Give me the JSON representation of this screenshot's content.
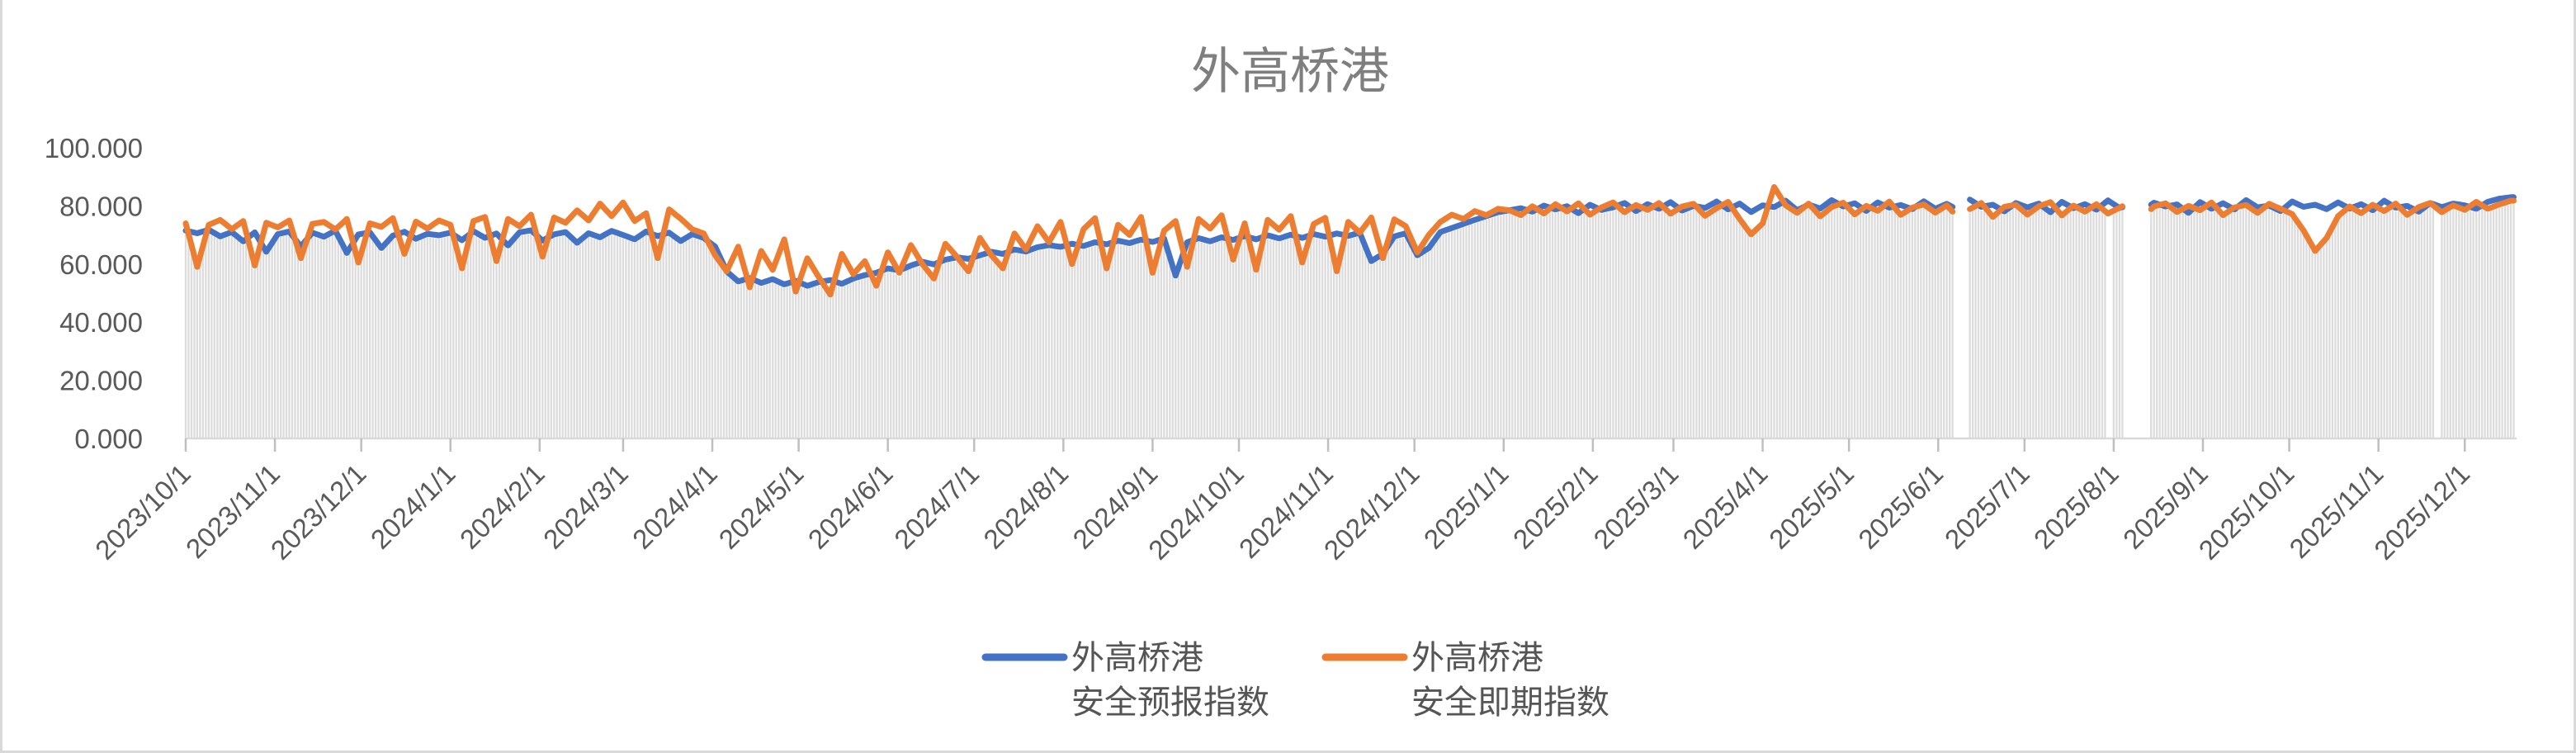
{
  "chart_data": {
    "type": "line",
    "title": "外高桥港",
    "grid": false,
    "legend_position": "bottom",
    "ylim": [
      0,
      100
    ],
    "y_tick_values": [
      0,
      20,
      40,
      60,
      80,
      100
    ],
    "y_tick_labels": [
      "0.000",
      "20.000",
      "40.000",
      "60.000",
      "80.000",
      "100.000"
    ],
    "x_tick_labels": [
      "2023/10/1",
      "2023/11/1",
      "2023/12/1",
      "2024/1/1",
      "2024/2/1",
      "2024/3/1",
      "2024/4/1",
      "2024/5/1",
      "2024/6/1",
      "2024/7/1",
      "2024/8/1",
      "2024/9/1",
      "2024/10/1",
      "2024/11/1",
      "2024/12/1",
      "2025/1/1",
      "2025/2/1",
      "2025/3/1",
      "2025/4/1",
      "2025/5/1",
      "2025/6/1",
      "2025/7/1",
      "2025/8/1",
      "2025/9/1",
      "2025/10/1",
      "2025/11/1",
      "2025/12/1"
    ],
    "total_days": 810,
    "sample_interval_days": 4,
    "gap_day_ranges": [
      [
        615,
        619
      ],
      [
        668,
        669
      ],
      [
        674,
        682
      ],
      [
        782,
        783
      ]
    ],
    "line_break_gaps": [
      [
        615,
        619
      ],
      [
        674,
        682
      ]
    ],
    "bars": {
      "color": "#dcdcdc",
      "follows": "min-of-series",
      "note": "light gray daily columns under the lines"
    },
    "series": [
      {
        "name": "外高桥港 安全预报指数",
        "legend_lines": [
          "外高桥港",
          "安全预报指数"
        ],
        "color": "#4472C4",
        "values": [
          71.5,
          70.6,
          71.8,
          69.5,
          71.0,
          67.8,
          70.9,
          64.2,
          70.3,
          71.2,
          66.0,
          70.8,
          69.4,
          71.5,
          63.8,
          70.2,
          70.9,
          65.5,
          69.8,
          71.1,
          68.7,
          70.4,
          69.9,
          70.8,
          68.2,
          71.3,
          69.0,
          70.5,
          66.4,
          70.9,
          71.6,
          68.1,
          70.2,
          71.0,
          67.3,
          70.6,
          69.2,
          71.4,
          70.0,
          68.5,
          71.2,
          69.6,
          70.8,
          67.9,
          70.3,
          69.0,
          66.0,
          57.5,
          54.0,
          55.2,
          53.5,
          54.8,
          53.0,
          54.2,
          52.5,
          53.8,
          54.5,
          53.2,
          55.0,
          56.2,
          57.0,
          58.5,
          57.8,
          59.5,
          60.8,
          59.9,
          61.5,
          62.3,
          61.8,
          63.0,
          64.2,
          63.5,
          65.0,
          64.3,
          65.8,
          66.5,
          65.9,
          67.0,
          66.2,
          67.5,
          66.8,
          68.0,
          67.2,
          68.4,
          67.6,
          68.8,
          56.0,
          67.5,
          68.9,
          67.8,
          69.2,
          68.3,
          69.6,
          68.5,
          69.9,
          68.8,
          70.1,
          69.0,
          70.3,
          69.4,
          70.5,
          69.7,
          70.8,
          61.0,
          63.5,
          69.5,
          70.6,
          63.0,
          65.5,
          71.0,
          72.4,
          73.8,
          75.2,
          76.5,
          77.8,
          78.5,
          79.2,
          78.0,
          80.1,
          78.8,
          79.9,
          77.5,
          80.4,
          78.6,
          79.5,
          81.0,
          78.2,
          80.6,
          79.0,
          81.3,
          78.4,
          80.0,
          79.3,
          81.5,
          78.8,
          80.8,
          77.9,
          80.2,
          79.6,
          81.8,
          78.5,
          80.5,
          79.1,
          82.0,
          79.8,
          80.9,
          78.3,
          81.2,
          79.4,
          80.3,
          78.9,
          81.6,
          79.0,
          80.7,
          78.6,
          82.2,
          79.7,
          80.4,
          78.1,
          81.0,
          79.5,
          80.8,
          77.8,
          81.4,
          79.2,
          80.6,
          78.7,
          81.9,
          79.3,
          80.2,
          78.4,
          81.1,
          79.8,
          80.5,
          77.6,
          81.3,
          79.0,
          80.9,
          78.8,
          82.0,
          79.5,
          80.1,
          78.2,
          81.5,
          79.7,
          80.4,
          78.9,
          81.2,
          79.1,
          80.6,
          78.5,
          81.8,
          79.4,
          80.0,
          78.0,
          81.0,
          79.6,
          80.8,
          80.2,
          79.0,
          81.4,
          82.5,
          83.0
        ]
      },
      {
        "name": "外高桥港 安全即期指数",
        "legend_lines": [
          "外高桥港",
          "安全即期指数"
        ],
        "color": "#ED7D31",
        "values": [
          74.0,
          59.0,
          73.5,
          75.2,
          72.0,
          74.8,
          59.5,
          74.2,
          72.6,
          75.0,
          62.0,
          73.8,
          74.5,
          71.9,
          75.5,
          60.5,
          74.0,
          72.8,
          75.8,
          63.5,
          74.6,
          72.2,
          75.0,
          73.5,
          58.5,
          74.8,
          76.2,
          61.0,
          75.5,
          73.0,
          77.0,
          62.5,
          76.0,
          74.2,
          78.5,
          75.0,
          80.8,
          76.5,
          81.2,
          74.8,
          77.5,
          62.0,
          78.8,
          75.6,
          72.0,
          70.5,
          63.0,
          57.5,
          66.0,
          52.0,
          64.5,
          58.0,
          68.5,
          50.5,
          62.0,
          55.5,
          49.5,
          63.5,
          56.5,
          61.0,
          52.5,
          64.0,
          57.0,
          66.5,
          60.0,
          55.0,
          67.0,
          62.5,
          57.5,
          69.0,
          63.0,
          58.5,
          70.5,
          65.0,
          73.0,
          67.5,
          74.5,
          60.0,
          72.0,
          75.8,
          58.5,
          73.5,
          70.0,
          76.2,
          57.0,
          71.5,
          74.8,
          59.0,
          75.5,
          72.2,
          76.8,
          61.5,
          74.0,
          58.0,
          75.2,
          71.8,
          76.5,
          60.5,
          73.8,
          75.9,
          57.5,
          74.5,
          70.8,
          76.0,
          62.0,
          75.4,
          73.0,
          64.0,
          70.0,
          74.5,
          77.0,
          75.5,
          78.2,
          76.8,
          79.0,
          78.5,
          76.8,
          79.9,
          77.4,
          80.6,
          78.1,
          80.9,
          77.0,
          79.5,
          81.2,
          77.8,
          80.3,
          78.6,
          81.0,
          77.3,
          79.8,
          80.7,
          76.6,
          79.2,
          81.4,
          75.5,
          70.2,
          74.0,
          86.5,
          80.2,
          77.6,
          80.8,
          76.4,
          79.6,
          81.1,
          77.1,
          80.0,
          78.3,
          81.5,
          76.9,
          79.4,
          80.5,
          77.7,
          80.2,
          75.8,
          78.9,
          81.0,
          76.2,
          79.7,
          80.4,
          77.0,
          79.9,
          81.3,
          76.7,
          80.1,
          78.0,
          80.6,
          77.4,
          79.3,
          81.6,
          76.1,
          79.8,
          80.9,
          77.9,
          80.0,
          78.5,
          81.2,
          76.8,
          79.5,
          80.3,
          77.6,
          80.7,
          79.0,
          77.2,
          71.5,
          64.5,
          69.0,
          76.5,
          79.8,
          77.5,
          80.4,
          78.2,
          80.8,
          76.9,
          79.6,
          81.0,
          77.8,
          80.2,
          78.6,
          81.4,
          79.0,
          80.5,
          81.8
        ]
      }
    ]
  },
  "colors": {
    "title": "#7f7f7f",
    "axis_text": "#595959",
    "axis_line": "#d9d9d9",
    "tick_mark": "#bfbfbf",
    "bars": "#dcdcdc",
    "series_forecast": "#4472C4",
    "series_spot": "#ED7D31",
    "window_border": "#d9d9d9"
  }
}
